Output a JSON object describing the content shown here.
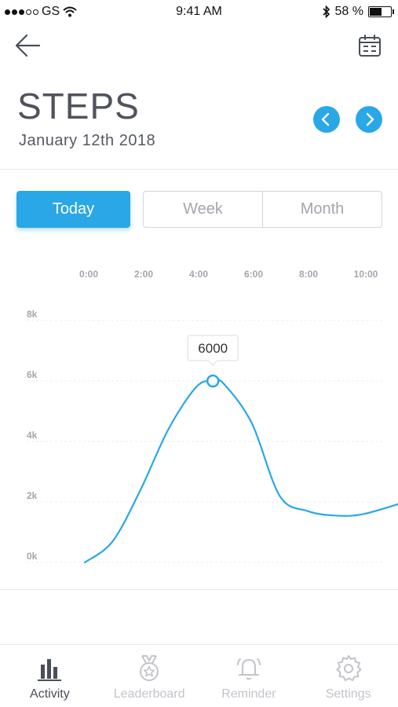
{
  "status_bar": {
    "carrier": "GS",
    "time": "9:41 AM",
    "battery": "58 %",
    "battery_level": 0.58
  },
  "header": {
    "title": "STEPS",
    "date": "January 12th 2018"
  },
  "segments": {
    "today": "Today",
    "week": "Week",
    "month": "Month",
    "selected": "Today"
  },
  "chart_data": {
    "type": "line",
    "x_tick_labels": [
      "0:00",
      "2:00",
      "4:00",
      "6:00",
      "8:00",
      "10:00"
    ],
    "y_tick_labels": [
      "8k",
      "6k",
      "4k",
      "2k",
      "0k"
    ],
    "ylim": [
      0,
      8000
    ],
    "xlim": [
      0,
      11.5
    ],
    "x": [
      0,
      1,
      2,
      3,
      4,
      4.6,
      5,
      6,
      7,
      8,
      9,
      10,
      11.5
    ],
    "values": [
      0,
      700,
      2400,
      4400,
      5800,
      6000,
      5900,
      4600,
      2200,
      1700,
      1550,
      1600,
      2000
    ],
    "highlight": {
      "x": 4.6,
      "value": 6000,
      "label": "6000"
    },
    "line_color": "#2aa7e6",
    "grid": true
  },
  "tabs": [
    {
      "label": "Activity",
      "icon": "bar-chart-icon",
      "active": true
    },
    {
      "label": "Leaderboard",
      "icon": "medal-icon",
      "active": false
    },
    {
      "label": "Reminder",
      "icon": "bell-icon",
      "active": false
    },
    {
      "label": "Settings",
      "icon": "gear-icon",
      "active": false
    }
  ],
  "colors": {
    "accent": "#2aa7e6",
    "text": "#4a4d5a",
    "muted": "#c2c4ca"
  }
}
